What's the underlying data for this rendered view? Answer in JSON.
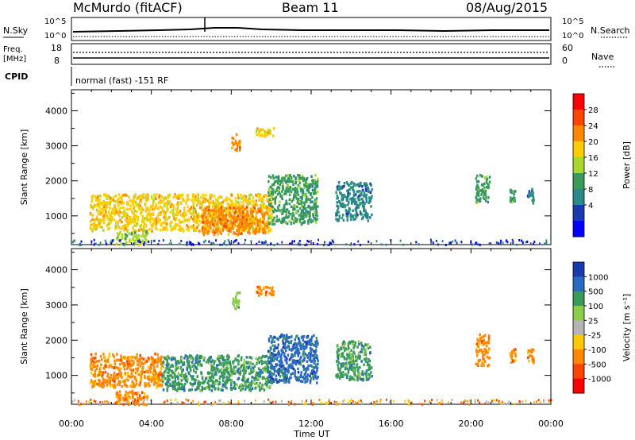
{
  "header": {
    "station": "McMurdo (fitACF)",
    "beam": "Beam 11",
    "date": "08/Aug/2015"
  },
  "top_panels": {
    "nsky_label": "N.Sky",
    "nsearch_label": "N.Search",
    "nsky_ticks": [
      "10^5",
      "10^0"
    ],
    "nsearch_ticks": [
      "10^5",
      "10^0"
    ],
    "freq_label": "Freq.",
    "freq_unit": "[MHz]",
    "freq_ticks": [
      "18",
      "8"
    ],
    "nave_label": "Nave",
    "nave_ticks": [
      "60",
      "0"
    ],
    "cpid_label": "CPID",
    "cpid_text": "normal (fast) -151 RF"
  },
  "x_axis": {
    "label": "Time UT",
    "ticks": [
      "00:00",
      "04:00",
      "08:00",
      "12:00",
      "16:00",
      "20:00",
      "00:00"
    ]
  },
  "chart_data": [
    {
      "type": "heatmap",
      "panel": "power",
      "ylabel": "Slant Range [km]",
      "ylim": [
        180,
        4600
      ],
      "y_ticks": [
        1000,
        2000,
        3000,
        4000
      ],
      "xlim_hours": [
        0,
        24
      ],
      "colorbar": {
        "label": "Power [dB]",
        "ticks": [
          "28",
          "24",
          "20",
          "16",
          "12",
          "8",
          "4"
        ],
        "colors": [
          "#ff0000",
          "#ff4400",
          "#ff8800",
          "#ffcc00",
          "#a8d82c",
          "#3a9a5a",
          "#2a8a8a",
          "#1a3ab0",
          "#0000ff"
        ]
      },
      "regions": [
        {
          "t0": 0.9,
          "t1": 10.0,
          "r0": 600,
          "r1": 1650,
          "level": 20
        },
        {
          "t0": 6.5,
          "t1": 9.8,
          "r0": 500,
          "r1": 1300,
          "level": 26
        },
        {
          "t0": 9.8,
          "t1": 12.3,
          "r0": 800,
          "r1": 2200,
          "level": 14
        },
        {
          "t0": 13.2,
          "t1": 15.0,
          "r0": 900,
          "r1": 2000,
          "level": 10
        },
        {
          "t0": 20.2,
          "t1": 20.9,
          "r0": 1400,
          "r1": 2200,
          "level": 14
        },
        {
          "t0": 21.9,
          "t1": 22.2,
          "r0": 1400,
          "r1": 1800,
          "level": 12
        },
        {
          "t0": 22.8,
          "t1": 23.1,
          "r0": 1400,
          "r1": 1800,
          "level": 10
        },
        {
          "t0": 8.0,
          "t1": 8.4,
          "r0": 2900,
          "r1": 3400,
          "level": 24
        },
        {
          "t0": 9.2,
          "t1": 10.1,
          "r0": 3300,
          "r1": 3550,
          "level": 20
        },
        {
          "t0": 2.2,
          "t1": 3.8,
          "r0": 200,
          "r1": 600,
          "level": 16
        }
      ]
    },
    {
      "type": "heatmap",
      "panel": "velocity",
      "ylabel": "Slant Range [km]",
      "ylim": [
        180,
        4600
      ],
      "y_ticks": [
        1000,
        2000,
        3000,
        4000
      ],
      "xlim_hours": [
        0,
        24
      ],
      "colorbar": {
        "label": "Velocity [m s⁻¹]",
        "ticks": [
          "1000",
          "500",
          "100",
          "25",
          "-25",
          "-100",
          "-500",
          "-1000"
        ],
        "colors": [
          "#1a3ab0",
          "#2a6ac0",
          "#3a9a5a",
          "#8acd4a",
          "#b4b4b4",
          "#ffc800",
          "#ff8800",
          "#ff4400",
          "#ff0000"
        ]
      },
      "regions": [
        {
          "t0": 0.9,
          "t1": 4.5,
          "r0": 700,
          "r1": 1650,
          "level": -300
        },
        {
          "t0": 4.5,
          "t1": 10.0,
          "r0": 600,
          "r1": 1600,
          "level": 150
        },
        {
          "t0": 9.8,
          "t1": 12.3,
          "r0": 800,
          "r1": 2200,
          "level": 700
        },
        {
          "t0": 13.2,
          "t1": 15.0,
          "r0": 900,
          "r1": 2000,
          "level": 100
        },
        {
          "t0": 20.2,
          "t1": 20.9,
          "r0": 1300,
          "r1": 2200,
          "level": -300
        },
        {
          "t0": 21.9,
          "t1": 22.2,
          "r0": 1400,
          "r1": 1800,
          "level": -300
        },
        {
          "t0": 22.8,
          "t1": 23.1,
          "r0": 1400,
          "r1": 1800,
          "level": -300
        },
        {
          "t0": 8.0,
          "t1": 8.4,
          "r0": 2900,
          "r1": 3400,
          "level": 80
        },
        {
          "t0": 9.2,
          "t1": 10.1,
          "r0": 3300,
          "r1": 3550,
          "level": -200
        },
        {
          "t0": 2.2,
          "t1": 3.8,
          "r0": 200,
          "r1": 600,
          "level": -200
        }
      ]
    }
  ]
}
